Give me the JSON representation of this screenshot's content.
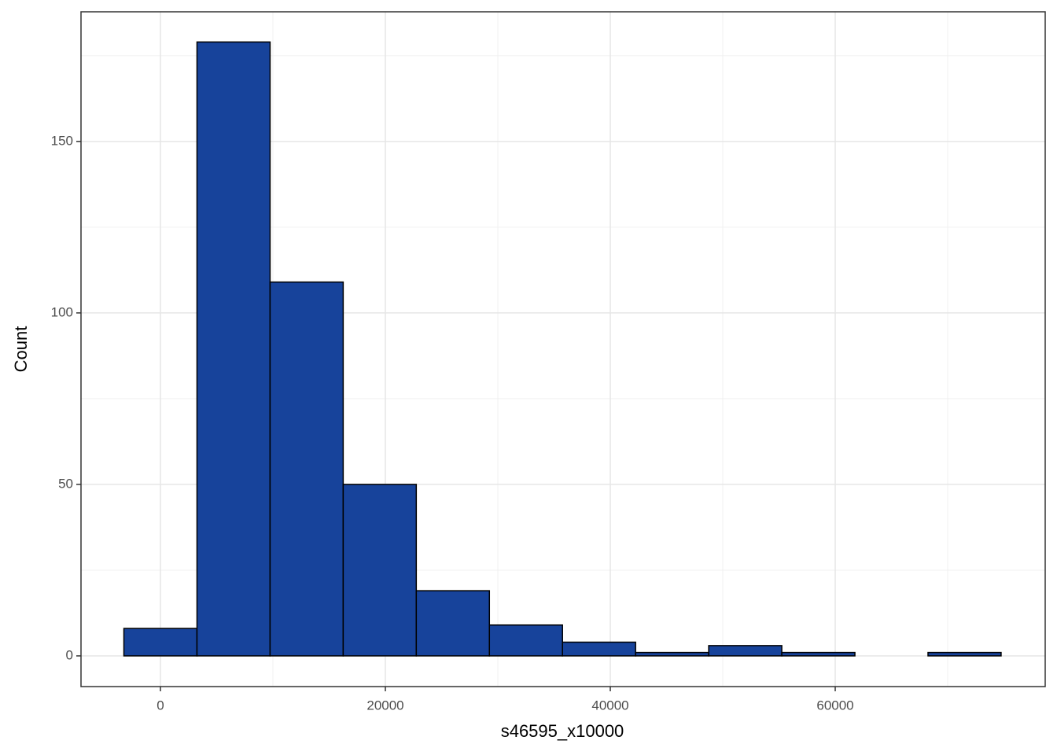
{
  "chart_data": {
    "type": "histogram",
    "x_label": "s46595_x10000",
    "y_label": "Count",
    "bins": [
      -3250,
      3250,
      9750,
      16250,
      22750,
      29250,
      35750,
      42250,
      48750,
      55250,
      61750,
      68250,
      74750
    ],
    "values": [
      8,
      179,
      109,
      50,
      19,
      9,
      4,
      1,
      3,
      1,
      0,
      1
    ],
    "color": "#17439b",
    "edge_color": "#000000",
    "xlim": [
      -7063,
      78671
    ],
    "ylim": [
      -8.95,
      187.8
    ],
    "xticks": [
      0,
      20000,
      40000,
      60000
    ],
    "yticks": [
      0,
      50,
      100,
      150
    ],
    "x_minor_ticks": [
      10000,
      30000,
      50000,
      70000
    ],
    "y_minor_ticks": [
      25,
      75,
      125,
      175
    ],
    "grid": true
  }
}
